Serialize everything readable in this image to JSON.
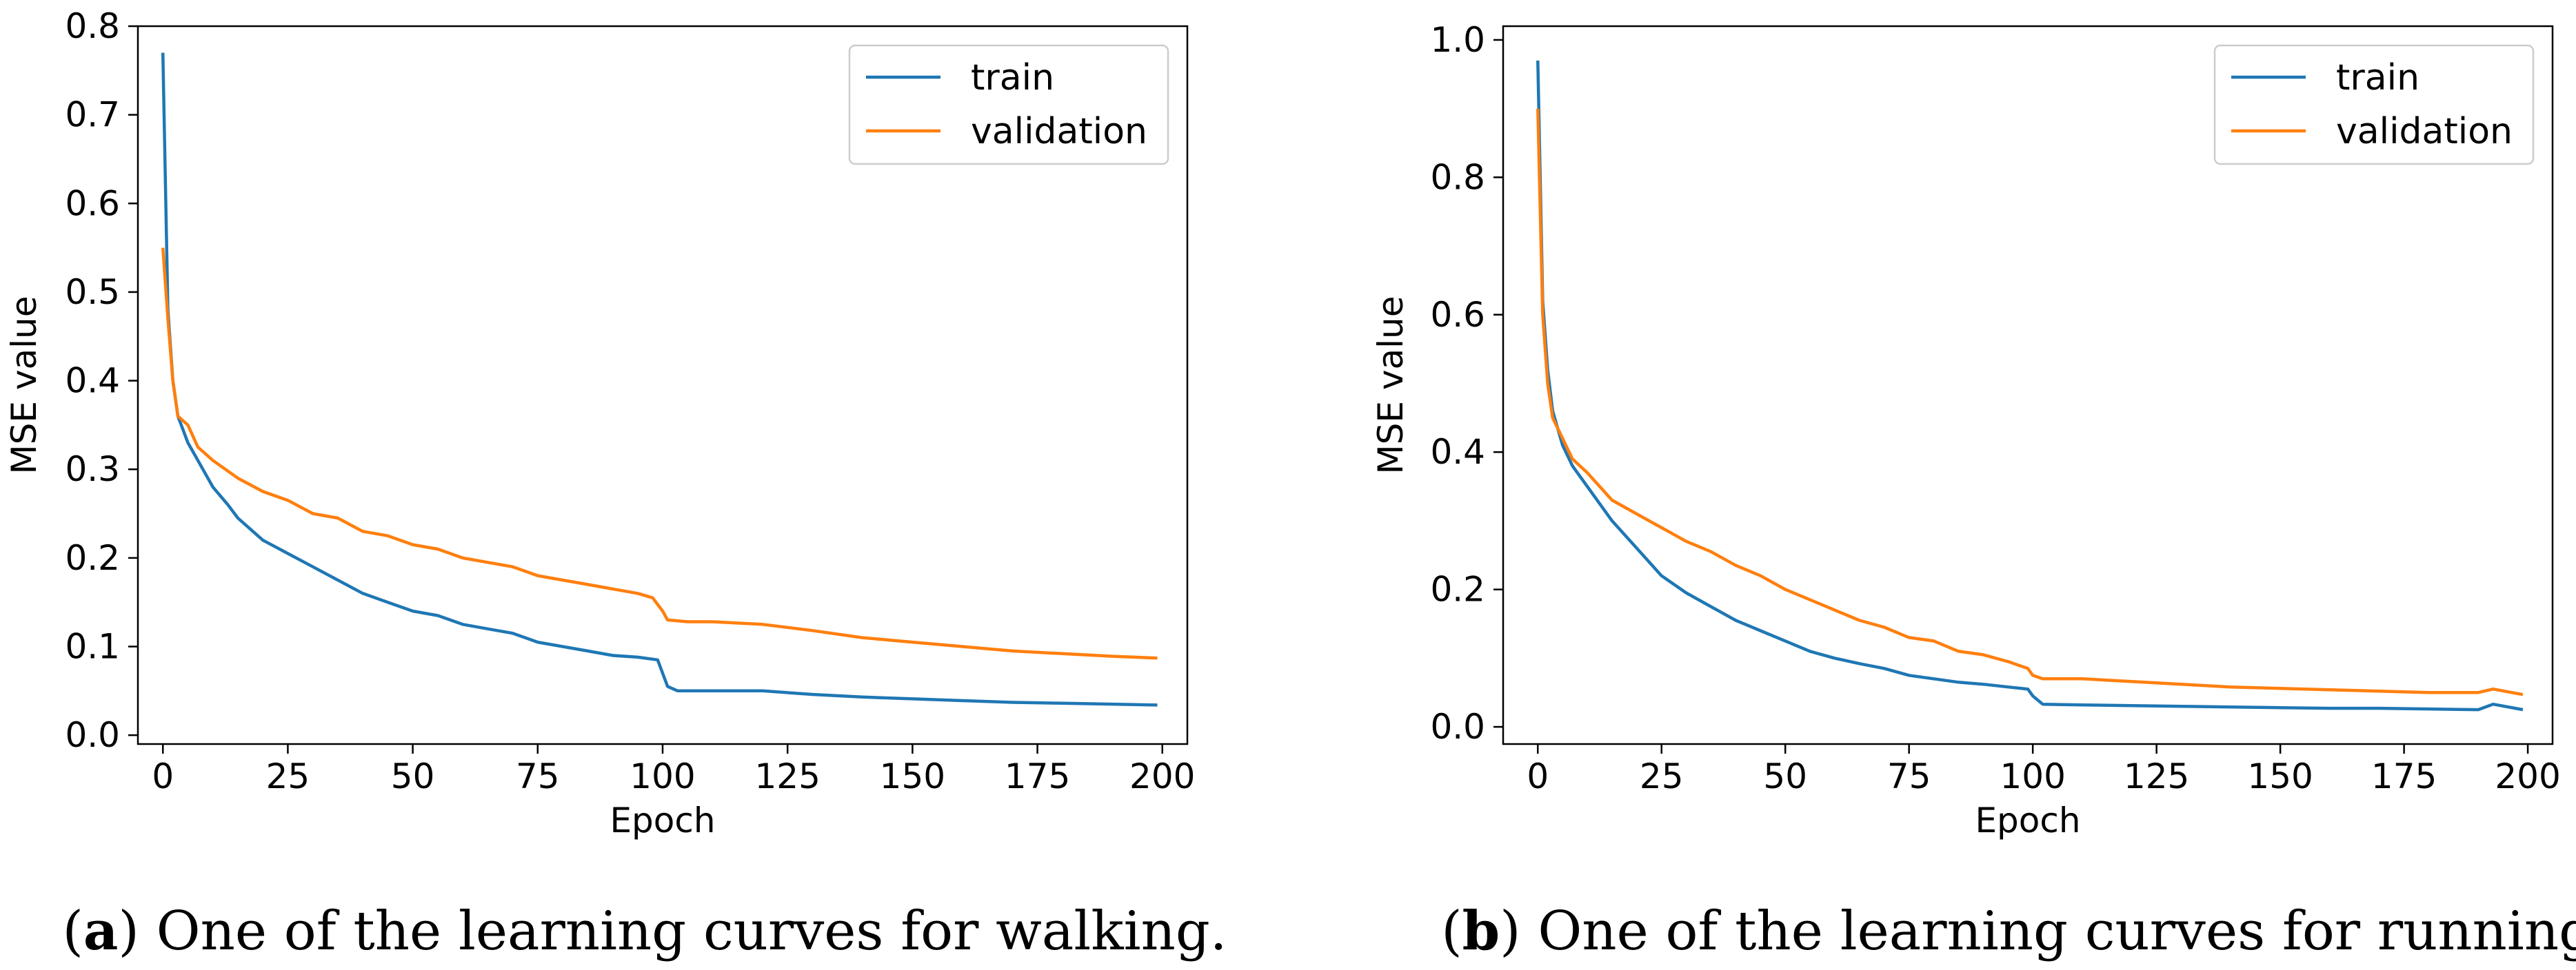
{
  "colors": {
    "train": "#1f77b4",
    "validation": "#ff7f0e",
    "frame": "#000000",
    "legend_border": "#cccccc",
    "background": "#ffffff"
  },
  "chart_data": [
    {
      "type": "line",
      "panel": "a",
      "xlabel": "Epoch",
      "ylabel": "MSE value",
      "xlim": [
        -5,
        205
      ],
      "ylim": [
        -0.01,
        0.8
      ],
      "xticks": [
        0,
        25,
        50,
        75,
        100,
        125,
        150,
        175,
        200
      ],
      "xtick_labels": [
        "0",
        "25",
        "50",
        "75",
        "100",
        "125",
        "150",
        "175",
        "200"
      ],
      "yticks": [
        0.0,
        0.1,
        0.2,
        0.3,
        0.4,
        0.5,
        0.6,
        0.7,
        0.8
      ],
      "ytick_labels": [
        "0.0",
        "0.1",
        "0.2",
        "0.3",
        "0.4",
        "0.5",
        "0.6",
        "0.7",
        "0.8"
      ],
      "legend_position": "top-right",
      "grid": false,
      "caption_label": "a",
      "caption_text": ") One of the learning curves for walking.",
      "series": [
        {
          "name": "train",
          "color_key": "train",
          "points": [
            [
              0,
              0.77
            ],
            [
              1,
              0.48
            ],
            [
              2,
              0.4
            ],
            [
              3,
              0.36
            ],
            [
              5,
              0.33
            ],
            [
              7,
              0.31
            ],
            [
              10,
              0.28
            ],
            [
              13,
              0.26
            ],
            [
              15,
              0.245
            ],
            [
              20,
              0.22
            ],
            [
              25,
              0.205
            ],
            [
              30,
              0.19
            ],
            [
              35,
              0.175
            ],
            [
              40,
              0.16
            ],
            [
              45,
              0.15
            ],
            [
              50,
              0.14
            ],
            [
              55,
              0.135
            ],
            [
              60,
              0.125
            ],
            [
              65,
              0.12
            ],
            [
              70,
              0.115
            ],
            [
              75,
              0.105
            ],
            [
              80,
              0.1
            ],
            [
              85,
              0.095
            ],
            [
              90,
              0.09
            ],
            [
              95,
              0.088
            ],
            [
              99,
              0.085
            ],
            [
              100,
              0.07
            ],
            [
              101,
              0.055
            ],
            [
              103,
              0.05
            ],
            [
              110,
              0.05
            ],
            [
              120,
              0.05
            ],
            [
              130,
              0.046
            ],
            [
              140,
              0.043
            ],
            [
              150,
              0.041
            ],
            [
              160,
              0.039
            ],
            [
              170,
              0.037
            ],
            [
              180,
              0.036
            ],
            [
              190,
              0.035
            ],
            [
              199,
              0.034
            ]
          ]
        },
        {
          "name": "validation",
          "color_key": "validation",
          "points": [
            [
              0,
              0.55
            ],
            [
              1,
              0.47
            ],
            [
              2,
              0.4
            ],
            [
              3,
              0.36
            ],
            [
              4,
              0.355
            ],
            [
              5,
              0.35
            ],
            [
              7,
              0.325
            ],
            [
              10,
              0.31
            ],
            [
              15,
              0.29
            ],
            [
              20,
              0.275
            ],
            [
              25,
              0.265
            ],
            [
              30,
              0.25
            ],
            [
              35,
              0.245
            ],
            [
              40,
              0.23
            ],
            [
              45,
              0.225
            ],
            [
              50,
              0.215
            ],
            [
              55,
              0.21
            ],
            [
              60,
              0.2
            ],
            [
              65,
              0.195
            ],
            [
              70,
              0.19
            ],
            [
              75,
              0.18
            ],
            [
              80,
              0.175
            ],
            [
              85,
              0.17
            ],
            [
              90,
              0.165
            ],
            [
              95,
              0.16
            ],
            [
              98,
              0.155
            ],
            [
              100,
              0.14
            ],
            [
              101,
              0.13
            ],
            [
              105,
              0.128
            ],
            [
              110,
              0.128
            ],
            [
              120,
              0.125
            ],
            [
              130,
              0.118
            ],
            [
              140,
              0.11
            ],
            [
              150,
              0.105
            ],
            [
              160,
              0.1
            ],
            [
              170,
              0.095
            ],
            [
              180,
              0.092
            ],
            [
              190,
              0.089
            ],
            [
              199,
              0.087
            ]
          ]
        }
      ]
    },
    {
      "type": "line",
      "panel": "b",
      "xlabel": "Epoch",
      "ylabel": "MSE value",
      "xlim": [
        -7,
        205
      ],
      "ylim": [
        -0.025,
        1.02
      ],
      "xticks": [
        0,
        25,
        50,
        75,
        100,
        125,
        150,
        175,
        200
      ],
      "xtick_labels": [
        "0",
        "25",
        "50",
        "75",
        "100",
        "125",
        "150",
        "175",
        "200"
      ],
      "yticks": [
        0.0,
        0.2,
        0.4,
        0.6,
        0.8,
        1.0
      ],
      "ytick_labels": [
        "0.0",
        "0.2",
        "0.4",
        "0.6",
        "0.8",
        "1.0"
      ],
      "legend_position": "top-right",
      "grid": false,
      "caption_label": "b",
      "caption_text": ") One of the learning curves for running.",
      "series": [
        {
          "name": "train",
          "color_key": "train",
          "points": [
            [
              0,
              0.97
            ],
            [
              1,
              0.62
            ],
            [
              2,
              0.52
            ],
            [
              3,
              0.46
            ],
            [
              5,
              0.41
            ],
            [
              7,
              0.38
            ],
            [
              10,
              0.35
            ],
            [
              15,
              0.3
            ],
            [
              20,
              0.26
            ],
            [
              25,
              0.22
            ],
            [
              30,
              0.195
            ],
            [
              35,
              0.175
            ],
            [
              40,
              0.155
            ],
            [
              45,
              0.14
            ],
            [
              50,
              0.125
            ],
            [
              55,
              0.11
            ],
            [
              60,
              0.1
            ],
            [
              65,
              0.092
            ],
            [
              70,
              0.085
            ],
            [
              75,
              0.075
            ],
            [
              80,
              0.07
            ],
            [
              85,
              0.065
            ],
            [
              90,
              0.062
            ],
            [
              95,
              0.058
            ],
            [
              99,
              0.055
            ],
            [
              100,
              0.045
            ],
            [
              102,
              0.033
            ],
            [
              110,
              0.032
            ],
            [
              120,
              0.031
            ],
            [
              130,
              0.03
            ],
            [
              140,
              0.029
            ],
            [
              150,
              0.028
            ],
            [
              160,
              0.027
            ],
            [
              170,
              0.027
            ],
            [
              180,
              0.026
            ],
            [
              190,
              0.025
            ],
            [
              193,
              0.033
            ],
            [
              199,
              0.025
            ]
          ]
        },
        {
          "name": "validation",
          "color_key": "validation",
          "points": [
            [
              0,
              0.9
            ],
            [
              1,
              0.6
            ],
            [
              2,
              0.5
            ],
            [
              3,
              0.45
            ],
            [
              5,
              0.42
            ],
            [
              7,
              0.39
            ],
            [
              10,
              0.37
            ],
            [
              15,
              0.33
            ],
            [
              20,
              0.31
            ],
            [
              25,
              0.29
            ],
            [
              30,
              0.27
            ],
            [
              35,
              0.255
            ],
            [
              40,
              0.235
            ],
            [
              45,
              0.22
            ],
            [
              50,
              0.2
            ],
            [
              55,
              0.185
            ],
            [
              60,
              0.17
            ],
            [
              65,
              0.155
            ],
            [
              70,
              0.145
            ],
            [
              75,
              0.13
            ],
            [
              80,
              0.125
            ],
            [
              85,
              0.11
            ],
            [
              90,
              0.105
            ],
            [
              95,
              0.095
            ],
            [
              99,
              0.085
            ],
            [
              100,
              0.075
            ],
            [
              102,
              0.07
            ],
            [
              110,
              0.07
            ],
            [
              120,
              0.066
            ],
            [
              130,
              0.062
            ],
            [
              140,
              0.058
            ],
            [
              150,
              0.056
            ],
            [
              160,
              0.054
            ],
            [
              170,
              0.052
            ],
            [
              180,
              0.05
            ],
            [
              190,
              0.05
            ],
            [
              193,
              0.055
            ],
            [
              199,
              0.047
            ]
          ]
        }
      ]
    }
  ]
}
